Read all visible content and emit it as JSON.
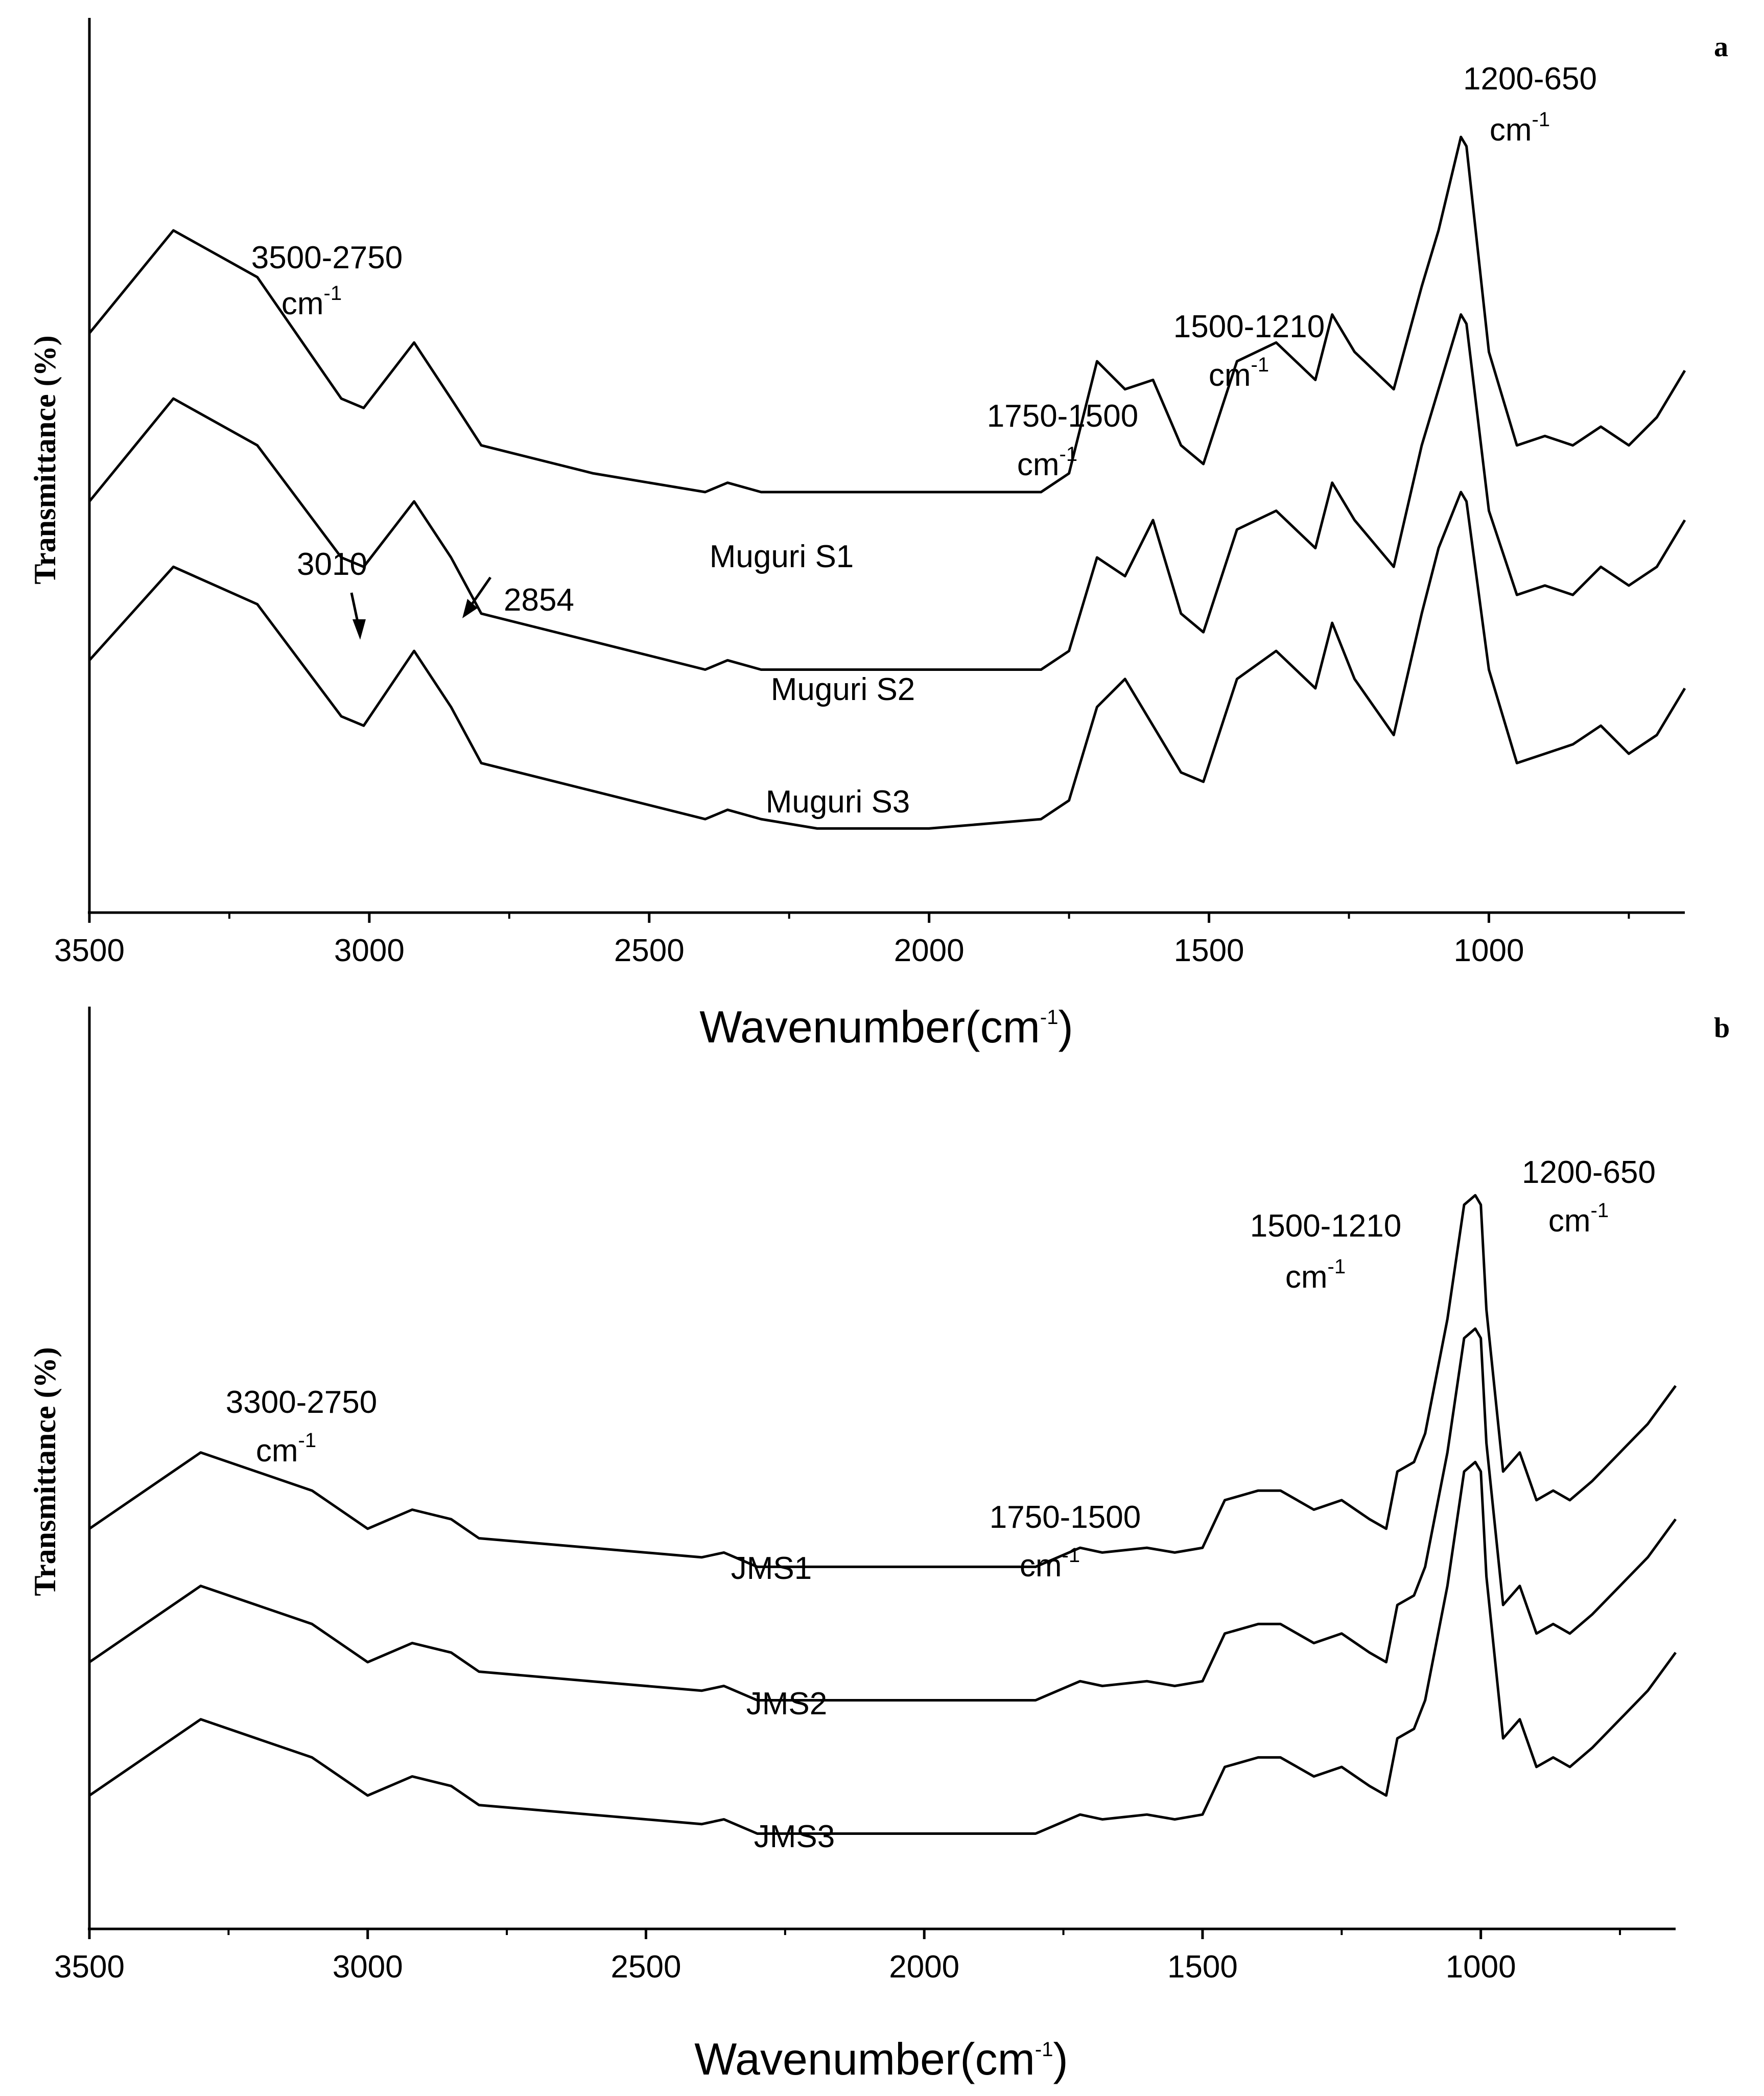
{
  "chart_data": [
    {
      "type": "line",
      "panel": "a",
      "xlabel": "Wavenumber(cm",
      "xlabel_sup": "-1",
      "xlabel_close": ")",
      "ylabel": "Transmittance (%)",
      "xlim": [
        3500,
        650
      ],
      "x_reversed": true,
      "xticks": [
        3500,
        3000,
        2500,
        2000,
        1500,
        1000
      ],
      "grid": false,
      "y_ticks_shown": false,
      "series": [
        {
          "name": "Muguri S1",
          "x": [
            3500,
            3350,
            3200,
            3050,
            3010,
            2920,
            2854,
            2800,
            2600,
            2400,
            2360,
            2300,
            2200,
            2000,
            1800,
            1750,
            1700,
            1650,
            1600,
            1550,
            1510,
            1450,
            1380,
            1310,
            1280,
            1240,
            1170,
            1120,
            1090,
            1050,
            1040,
            1000,
            950,
            900,
            850,
            800,
            750,
            700,
            650
          ],
          "y": [
            82,
            93,
            88,
            75,
            74,
            81,
            75,
            70,
            67,
            65,
            66,
            65,
            65,
            65,
            65,
            67,
            79,
            76,
            77,
            70,
            68,
            79,
            81,
            77,
            84,
            80,
            76,
            87,
            93,
            103,
            102,
            80,
            70,
            71,
            70,
            72,
            70,
            73,
            78
          ]
        },
        {
          "name": "Muguri S2",
          "x": [
            3500,
            3350,
            3200,
            3050,
            3010,
            2920,
            2854,
            2800,
            2600,
            2400,
            2360,
            2300,
            2200,
            2000,
            1800,
            1750,
            1700,
            1650,
            1600,
            1550,
            1510,
            1450,
            1380,
            1310,
            1280,
            1240,
            1170,
            1120,
            1090,
            1050,
            1040,
            1000,
            950,
            900,
            850,
            800,
            750,
            700,
            650
          ],
          "y": [
            64,
            75,
            70,
            58,
            57,
            64,
            58,
            52,
            49,
            46,
            47,
            46,
            46,
            46,
            46,
            48,
            58,
            56,
            62,
            52,
            50,
            61,
            63,
            59,
            66,
            62,
            57,
            70,
            76,
            84,
            83,
            63,
            54,
            55,
            54,
            57,
            55,
            57,
            62
          ]
        },
        {
          "name": "Muguri S3",
          "x": [
            3500,
            3350,
            3200,
            3050,
            3010,
            2920,
            2854,
            2800,
            2600,
            2400,
            2360,
            2300,
            2200,
            2000,
            1800,
            1750,
            1700,
            1650,
            1600,
            1550,
            1510,
            1450,
            1380,
            1310,
            1280,
            1240,
            1170,
            1120,
            1090,
            1050,
            1040,
            1000,
            950,
            900,
            850,
            800,
            750,
            700,
            650
          ],
          "y": [
            47,
            57,
            53,
            41,
            40,
            48,
            42,
            36,
            33,
            30,
            31,
            30,
            29,
            29,
            30,
            32,
            42,
            45,
            40,
            35,
            34,
            45,
            48,
            44,
            51,
            45,
            39,
            52,
            59,
            65,
            64,
            46,
            36,
            37,
            38,
            40,
            37,
            39,
            44
          ]
        }
      ],
      "annotations": [
        {
          "text": "3500-2750",
          "unit": "cm",
          "sup": "-1"
        },
        {
          "text": "1750-1500",
          "unit": "cm",
          "sup": "-1"
        },
        {
          "text": "1500-1210",
          "unit": "cm",
          "sup": "-1"
        },
        {
          "text": "1200-650",
          "unit": "cm",
          "sup": "-1"
        },
        {
          "text": "3010",
          "arrow_to_x": 3010
        },
        {
          "text": "2854",
          "arrow_to_x": 2854
        }
      ],
      "series_labels": [
        "Muguri S1",
        "Muguri S2",
        "Muguri S3"
      ]
    },
    {
      "type": "line",
      "panel": "b",
      "xlabel": "Wavenumber(cm",
      "xlabel_sup": "-1",
      "xlabel_close": ")",
      "ylabel": "Transmittance (%)",
      "xlim": [
        3500,
        650
      ],
      "x_reversed": true,
      "xticks": [
        3500,
        3000,
        2500,
        2000,
        1500,
        1000
      ],
      "grid": false,
      "y_ticks_shown": false,
      "series": [
        {
          "name": "JMS1",
          "x": [
            3500,
            3300,
            3100,
            3000,
            2920,
            2850,
            2800,
            2600,
            2400,
            2360,
            2300,
            2200,
            2000,
            1800,
            1760,
            1720,
            1680,
            1600,
            1550,
            1500,
            1460,
            1400,
            1360,
            1300,
            1250,
            1200,
            1170,
            1150,
            1120,
            1100,
            1060,
            1030,
            1010,
            1000,
            990,
            960,
            930,
            900,
            870,
            840,
            800,
            750,
            700,
            650
          ],
          "y": [
            52,
            60,
            56,
            52,
            54,
            53,
            51,
            50,
            49,
            49.5,
            48,
            48,
            48,
            48,
            49,
            50,
            49.5,
            50,
            49.5,
            50,
            55,
            56,
            56,
            54,
            55,
            53,
            52,
            58,
            59,
            62,
            74,
            86,
            87,
            86,
            75,
            58,
            60,
            55,
            56,
            55,
            57,
            60,
            63,
            67
          ]
        },
        {
          "name": "JMS2",
          "x": [
            3500,
            3300,
            3100,
            3000,
            2920,
            2850,
            2800,
            2600,
            2400,
            2360,
            2300,
            2200,
            2000,
            1800,
            1760,
            1720,
            1680,
            1600,
            1550,
            1500,
            1460,
            1400,
            1360,
            1300,
            1250,
            1200,
            1170,
            1150,
            1120,
            1100,
            1060,
            1030,
            1010,
            1000,
            990,
            960,
            930,
            900,
            870,
            840,
            800,
            750,
            700,
            650
          ],
          "y": [
            38,
            46,
            42,
            38,
            40,
            39,
            37,
            36,
            35,
            35.5,
            34,
            34,
            34,
            34,
            35,
            36,
            35.5,
            36,
            35.5,
            36,
            41,
            42,
            42,
            40,
            41,
            39,
            38,
            44,
            45,
            48,
            60,
            72,
            73,
            72,
            61,
            44,
            46,
            41,
            42,
            41,
            43,
            46,
            49,
            53
          ]
        },
        {
          "name": "JMS3",
          "x": [
            3500,
            3300,
            3100,
            3000,
            2920,
            2850,
            2800,
            2600,
            2400,
            2360,
            2300,
            2200,
            2000,
            1800,
            1760,
            1720,
            1680,
            1600,
            1550,
            1500,
            1460,
            1400,
            1360,
            1300,
            1250,
            1200,
            1170,
            1150,
            1120,
            1100,
            1060,
            1030,
            1010,
            1000,
            990,
            960,
            930,
            900,
            870,
            840,
            800,
            750,
            700,
            650
          ],
          "y": [
            24,
            32,
            28,
            24,
            26,
            25,
            23,
            22,
            21,
            21.5,
            20,
            20,
            20,
            20,
            21,
            22,
            21.5,
            22,
            21.5,
            22,
            27,
            28,
            28,
            26,
            27,
            25,
            24,
            30,
            31,
            34,
            46,
            58,
            59,
            58,
            47,
            30,
            32,
            27,
            28,
            27,
            29,
            32,
            35,
            39
          ]
        }
      ],
      "annotations": [
        {
          "text": "3300-2750",
          "unit": "cm",
          "sup": "-1"
        },
        {
          "text": "1750-1500",
          "unit": "cm",
          "sup": "-1"
        },
        {
          "text": "1500-1210",
          "unit": "cm",
          "sup": "-1"
        },
        {
          "text": "1200-650",
          "unit": "cm",
          "sup": "-1"
        }
      ],
      "series_labels": [
        "JMS1",
        "JMS2",
        "JMS3"
      ]
    }
  ]
}
